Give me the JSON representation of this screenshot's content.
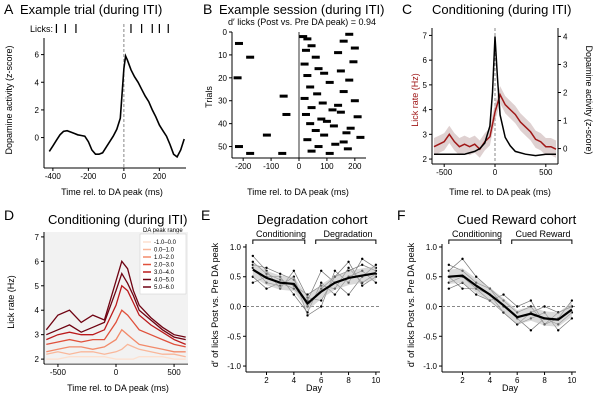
{
  "panels": {
    "A": {
      "letter": "A",
      "title": "Example trial (during ITI)",
      "licks_label": "Licks:",
      "xlabel": "Time rel. to DA peak (ms)",
      "ylabel": "Dopamine activity (z-score)"
    },
    "B": {
      "letter": "B",
      "title": "Example session (during ITI)",
      "subtitle": "d′ licks (Post vs. Pre DA peak) = 0.94",
      "xlabel": "Time rel. to DA peak (ms)",
      "ylabel": "Trials"
    },
    "C": {
      "letter": "C",
      "title": "Conditioning (during ITI)",
      "xlabel": "Time rel. to DA peak (ms)",
      "ylabel": "Lick rate (Hz)",
      "ylabel_right": "Dopamine activity (z-score)"
    },
    "D": {
      "letter": "D",
      "title": "Conditioning (during ITI)",
      "xlabel": "Time rel. to DA peak (ms)",
      "ylabel": "Lick rate (Hz)",
      "legend_title": "DA peak range"
    },
    "E": {
      "letter": "E",
      "title": "Degradation cohort",
      "phase1": "Conditioning",
      "phase2": "Degradation",
      "xlabel": "Day",
      "ylabel": "d′ of licks Post vs. Pre DA peak"
    },
    "F": {
      "letter": "F",
      "title": "Cued Reward cohort",
      "phase1": "Conditioning",
      "phase2": "Cued Reward",
      "xlabel": "Day",
      "ylabel": "d′ of licks Post vs. Pre DA peak"
    }
  },
  "colors": {
    "dark_red": "#a01818",
    "black": "#000000",
    "grey": "#888888",
    "range_colors": [
      "#fde0cf",
      "#f9b79a",
      "#f28a6a",
      "#e0503b",
      "#bb1a1c",
      "#6f0312"
    ]
  },
  "chart_data": [
    {
      "id": "A",
      "type": "line",
      "title": "Example trial (during ITI)",
      "xlabel": "Time rel. to DA peak (ms)",
      "ylabel": "Dopamine activity (z-score)",
      "xlim": [
        -450,
        350
      ],
      "ylim": [
        -2.2,
        7.2
      ],
      "xticks": [
        -400,
        -200,
        0,
        200
      ],
      "yticks": [
        0,
        2,
        4,
        6
      ],
      "x": [
        -420,
        -400,
        -380,
        -360,
        -340,
        -320,
        -300,
        -280,
        -260,
        -240,
        -220,
        -200,
        -180,
        -160,
        -140,
        -120,
        -100,
        -80,
        -60,
        -40,
        -20,
        0,
        10,
        20,
        40,
        60,
        80,
        100,
        120,
        140,
        160,
        180,
        200,
        220,
        240,
        260,
        280,
        300,
        320,
        340
      ],
      "y": [
        -1.0,
        -0.6,
        -0.2,
        0.2,
        0.45,
        0.5,
        0.4,
        0.3,
        0.2,
        0.15,
        0.1,
        -0.3,
        -0.9,
        -1.2,
        -1.2,
        -1.1,
        -0.7,
        -0.3,
        0.1,
        0.6,
        1.4,
        5.0,
        5.9,
        5.6,
        4.9,
        4.4,
        4.0,
        3.5,
        3.0,
        2.6,
        2.0,
        1.5,
        0.9,
        0.5,
        0.1,
        -0.5,
        -1.2,
        -1.4,
        -0.9,
        -0.1
      ],
      "lick_times": [
        -380,
        -330,
        -270,
        40,
        100,
        160,
        200,
        250
      ]
    },
    {
      "id": "B",
      "type": "raster",
      "title": "Example session (during ITI)",
      "subtitle": "d′ licks (Post vs. Pre DA peak) = 0.94",
      "xlabel": "Time rel. to DA peak (ms)",
      "ylabel": "Trials",
      "xlim": [
        -240,
        240
      ],
      "ylim": [
        0,
        55
      ],
      "xticks": [
        -200,
        -100,
        0,
        100,
        200
      ],
      "yticks": [
        0,
        10,
        20,
        30,
        40,
        50
      ],
      "licks": [
        [
          5,
          -215
        ],
        [
          11,
          -175
        ],
        [
          20,
          -220
        ],
        [
          28,
          -55
        ],
        [
          36,
          -45
        ],
        [
          45,
          -115
        ],
        [
          50,
          -215
        ],
        [
          53,
          -60
        ],
        [
          53,
          -175
        ],
        [
          2,
          15
        ],
        [
          3,
          30
        ],
        [
          6,
          45
        ],
        [
          8,
          25
        ],
        [
          11,
          60
        ],
        [
          14,
          20
        ],
        [
          16,
          70
        ],
        [
          19,
          30
        ],
        [
          22,
          110
        ],
        [
          24,
          40
        ],
        [
          27,
          65
        ],
        [
          29,
          20
        ],
        [
          31,
          85
        ],
        [
          33,
          45
        ],
        [
          34,
          120
        ],
        [
          35,
          150
        ],
        [
          36,
          25
        ],
        [
          38,
          80
        ],
        [
          40,
          40
        ],
        [
          41,
          125
        ],
        [
          43,
          60
        ],
        [
          45,
          90
        ],
        [
          47,
          30
        ],
        [
          48,
          160
        ],
        [
          50,
          70
        ],
        [
          52,
          45
        ],
        [
          53,
          110
        ],
        [
          4,
          160
        ],
        [
          9,
          140
        ],
        [
          13,
          195
        ],
        [
          17,
          150
        ],
        [
          21,
          180
        ],
        [
          26,
          160
        ],
        [
          30,
          200
        ],
        [
          37,
          210
        ],
        [
          42,
          185
        ],
        [
          46,
          220
        ],
        [
          51,
          175
        ],
        [
          1,
          180
        ],
        [
          7,
          200
        ],
        [
          18,
          90
        ],
        [
          32,
          140
        ],
        [
          39,
          100
        ],
        [
          44,
          170
        ],
        [
          49,
          130
        ]
      ]
    },
    {
      "id": "C",
      "type": "line",
      "title": "Conditioning (during ITI)",
      "xlabel": "Time rel. to DA peak (ms)",
      "ylabel": "Lick rate (Hz)",
      "ylabel_right": "Dopamine activity (z-score)",
      "xlim": [
        -620,
        620
      ],
      "ylim": [
        1.8,
        7.3
      ],
      "ylim_right": [
        -0.55,
        4.3
      ],
      "xticks": [
        -500,
        0,
        500
      ],
      "yticks": [
        2,
        3,
        4,
        5,
        6,
        7
      ],
      "yticks_right": [
        0,
        1,
        2,
        3,
        4
      ],
      "series": [
        {
          "name": "Lick rate",
          "axis": "left",
          "color": "#a01818",
          "x": [
            -600,
            -550,
            -500,
            -450,
            -400,
            -350,
            -300,
            -250,
            -200,
            -150,
            -100,
            -50,
            0,
            50,
            100,
            150,
            200,
            250,
            300,
            350,
            400,
            450,
            500,
            550,
            600
          ],
          "values": [
            2.5,
            2.6,
            2.7,
            3.0,
            2.7,
            2.5,
            2.6,
            2.5,
            2.6,
            2.4,
            2.7,
            2.9,
            3.9,
            4.6,
            4.2,
            4.0,
            3.8,
            3.5,
            3.3,
            3.1,
            2.8,
            2.7,
            2.5,
            2.5,
            2.4
          ]
        },
        {
          "name": "Dopamine",
          "axis": "right",
          "color": "#000000",
          "x": [
            -600,
            -500,
            -400,
            -300,
            -200,
            -150,
            -100,
            -50,
            -25,
            0,
            25,
            50,
            100,
            150,
            200,
            300,
            400,
            500,
            600
          ],
          "values": [
            -0.2,
            -0.2,
            -0.2,
            -0.2,
            -0.1,
            0.0,
            0.2,
            0.8,
            2.0,
            4.0,
            2.5,
            1.2,
            0.4,
            0.1,
            -0.1,
            -0.2,
            -0.25,
            -0.2,
            -0.2
          ]
        }
      ]
    },
    {
      "id": "D",
      "type": "line",
      "title": "Conditioning (during ITI)",
      "xlabel": "Time rel. to DA peak (ms)",
      "ylabel": "Lick rate (Hz)",
      "xlim": [
        -620,
        620
      ],
      "ylim": [
        1.8,
        7.2
      ],
      "xticks": [
        -500,
        0,
        500
      ],
      "yticks": [
        2,
        3,
        4,
        5,
        6,
        7
      ],
      "legend_title": "DA peak range",
      "x": [
        -600,
        -500,
        -400,
        -300,
        -200,
        -100,
        0,
        50,
        100,
        150,
        200,
        300,
        400,
        500,
        600
      ],
      "series": [
        {
          "name": "-1.0–0.0",
          "values": [
            2.0,
            2.0,
            2.1,
            2.1,
            2.1,
            2.1,
            2.0,
            2.0,
            2.0,
            2.0,
            2.1,
            2.1,
            2.1,
            2.0,
            2.0
          ]
        },
        {
          "name": "0.0–1.0",
          "values": [
            2.2,
            2.3,
            2.2,
            2.3,
            2.3,
            2.2,
            2.3,
            2.4,
            2.6,
            2.5,
            2.4,
            2.3,
            2.2,
            2.2,
            2.1
          ]
        },
        {
          "name": "1.0–2.0",
          "values": [
            2.3,
            2.4,
            2.5,
            2.5,
            2.4,
            2.5,
            2.8,
            3.2,
            3.0,
            2.8,
            2.6,
            2.5,
            2.4,
            2.3,
            2.3
          ]
        },
        {
          "name": "2.0–3.0",
          "values": [
            2.6,
            2.7,
            2.8,
            2.7,
            2.8,
            2.8,
            3.5,
            4.0,
            3.8,
            3.5,
            3.2,
            3.0,
            2.8,
            2.6,
            2.5
          ]
        },
        {
          "name": "3.0–4.0",
          "values": [
            2.8,
            3.0,
            3.1,
            3.0,
            3.0,
            3.2,
            4.2,
            5.0,
            4.8,
            4.3,
            3.8,
            3.4,
            3.1,
            2.8,
            2.6
          ]
        },
        {
          "name": "4.0–5.0",
          "values": [
            3.0,
            3.2,
            3.4,
            3.1,
            3.3,
            3.5,
            4.8,
            5.5,
            5.1,
            4.6,
            4.0,
            3.6,
            3.2,
            2.9,
            2.8
          ]
        },
        {
          "name": "5.0–6.0",
          "values": [
            3.2,
            3.8,
            4.0,
            3.5,
            3.8,
            3.6,
            5.2,
            6.0,
            5.7,
            4.8,
            4.2,
            3.7,
            3.3,
            3.0,
            2.9
          ]
        }
      ]
    },
    {
      "id": "E",
      "type": "line",
      "title": "Degradation cohort",
      "xlabel": "Day",
      "ylabel": "d′ of licks Post vs. Pre DA peak",
      "xlim": [
        0.5,
        10.3
      ],
      "ylim": [
        -1.1,
        1.05
      ],
      "xticks": [
        2,
        4,
        6,
        8,
        10
      ],
      "yticks": [
        -1.0,
        -0.5,
        0.0,
        0.5,
        1.0
      ],
      "x": [
        1,
        2,
        3,
        4,
        5,
        6,
        7,
        8,
        9,
        10
      ],
      "mean": [
        0.62,
        0.48,
        0.4,
        0.38,
        0.05,
        0.25,
        0.4,
        0.48,
        0.52,
        0.56
      ],
      "individual": [
        [
          0.7,
          0.65,
          0.55,
          0.45,
          0.0,
          0.3,
          0.5,
          0.6,
          0.7,
          0.6
        ],
        [
          0.5,
          0.3,
          0.4,
          0.3,
          0.1,
          0.6,
          0.4,
          0.2,
          0.5,
          0.7
        ],
        [
          0.85,
          0.6,
          0.3,
          0.6,
          0.15,
          0.1,
          0.5,
          0.75,
          0.35,
          0.5
        ],
        [
          0.4,
          0.5,
          0.5,
          0.2,
          -0.1,
          0.4,
          0.2,
          0.5,
          0.6,
          0.4
        ],
        [
          0.65,
          0.4,
          0.35,
          0.5,
          -0.15,
          0.0,
          0.6,
          0.4,
          0.8,
          0.65
        ],
        [
          0.75,
          0.55,
          0.45,
          0.35,
          0.2,
          0.35,
          0.3,
          0.65,
          0.4,
          0.55
        ]
      ]
    },
    {
      "id": "F",
      "type": "line",
      "title": "Cued Reward cohort",
      "xlabel": "Day",
      "ylabel": "d′ of licks Post vs. Pre DA peak",
      "xlim": [
        0.5,
        10.3
      ],
      "ylim": [
        -1.1,
        1.05
      ],
      "xticks": [
        2,
        4,
        6,
        8,
        10
      ],
      "yticks": [
        -1.0,
        -0.5,
        0.0,
        0.5,
        1.0
      ],
      "x": [
        1,
        2,
        3,
        4,
        5,
        6,
        7,
        8,
        9,
        10
      ],
      "mean": [
        0.5,
        0.52,
        0.35,
        0.2,
        0.02,
        -0.18,
        -0.12,
        -0.2,
        -0.22,
        -0.05
      ],
      "individual": [
        [
          0.6,
          0.8,
          0.5,
          0.3,
          0.1,
          -0.1,
          0.0,
          -0.3,
          -0.1,
          0.0
        ],
        [
          0.4,
          0.5,
          0.3,
          0.2,
          -0.1,
          -0.3,
          -0.2,
          -0.1,
          -0.4,
          -0.2
        ],
        [
          0.3,
          0.4,
          0.2,
          0.1,
          0.2,
          0.0,
          0.1,
          -0.3,
          -0.2,
          0.1
        ],
        [
          0.7,
          0.6,
          0.4,
          0.3,
          0.0,
          -0.2,
          -0.4,
          -0.2,
          -0.3,
          -0.1
        ],
        [
          0.5,
          0.3,
          0.3,
          0.1,
          -0.1,
          -0.3,
          -0.1,
          0.0,
          -0.1,
          0.0
        ]
      ]
    }
  ]
}
